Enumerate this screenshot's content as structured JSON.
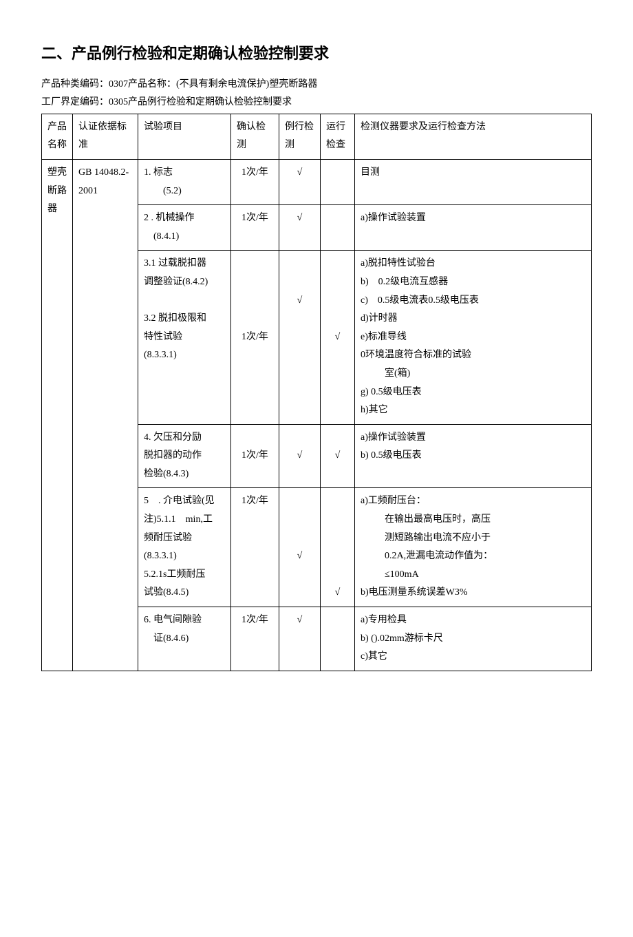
{
  "title": "二、产品例行检验和定期确认检验控制要求",
  "line1": "产品种类编码：0307产品名称：(不具有剩余电流保护)塑壳断路器",
  "line2": "工厂界定编码：0305产品例行检验和定期确认检验控制要求",
  "headers": {
    "product": "产品名称",
    "standard": "认证依据标准",
    "test": "试验项目",
    "confirm": "确认检测",
    "routine": "例行检测",
    "operation": "运行检查",
    "method": "检测仪器要求及运行检查方法"
  },
  "productName": "塑壳断路器",
  "standardName": "GB 14048.2-2001",
  "check": "√",
  "rows": {
    "r1": {
      "test_l1": "1. 标志",
      "test_l2": "(5.2)",
      "confirm": "1次/年",
      "routine": "√",
      "operation": "",
      "method": "目测"
    },
    "r2": {
      "test_l1": "2 . 机械操作",
      "test_l2": "(8.4.1)",
      "confirm": "1次/年",
      "routine": "√",
      "operation": "",
      "method": "a)操作试验装置"
    },
    "r3": {
      "test_l1": "3.1 过载脱扣器",
      "test_l2": "调整验证(8.4.2)",
      "test_l3": "",
      "test_l4": "3.2 脱扣极限和",
      "test_l5": "特性试验",
      "test_l6": "(8.3.3.1)",
      "confirm": "1次/年",
      "routine": "√",
      "operation": "√",
      "method_a": "a)脱扣特性试验台",
      "method_b": "b)　0.2级电流互感器",
      "method_c": "c)　0.5级电流表0.5级电压表",
      "method_d": "d)计时器",
      "method_e": "e)标准导线",
      "method_f": "0环境温度符合标准的试验",
      "method_f2": "室(箱)",
      "method_g": "g) 0.5级电压表",
      "method_h": "h)其它"
    },
    "r4": {
      "test_l1": "4. 欠压和分励",
      "test_l2": "脱扣器的动作",
      "test_l3": "检验(8.4.3)",
      "confirm": "1次/年",
      "routine": "√",
      "operation": "√",
      "method_a": "a)操作试验装置",
      "method_b": "b) 0.5级电压表"
    },
    "r5": {
      "test_l1": "5　. 介电试验(见",
      "test_l2": "注)5.1.1　min,工",
      "test_l3": "频耐压试验",
      "test_l4": "(8.3.3.1)",
      "test_l5": "5.2.1s工频耐压",
      "test_l6": "试验(8.4.5)",
      "confirm": "1次/年",
      "routine": "√",
      "operation": "√",
      "method_a": "a)工频耐压台：",
      "method_a2": "在输出最高电压时，高压",
      "method_a3": "测短路输出电流不应小于",
      "method_a4": "0.2A,泄漏电流动作值为：",
      "method_a5": "≤100mA",
      "method_b": "b)电压测量系统误差W3%"
    },
    "r6": {
      "test_l1": "6. 电气间隙验",
      "test_l2": "证(8.4.6)",
      "confirm": "1次/年",
      "routine": "√",
      "operation": "",
      "method_a": "a)专用检具",
      "method_b": "b) ().02mm游标卡尺",
      "method_c": "c)其它"
    }
  }
}
